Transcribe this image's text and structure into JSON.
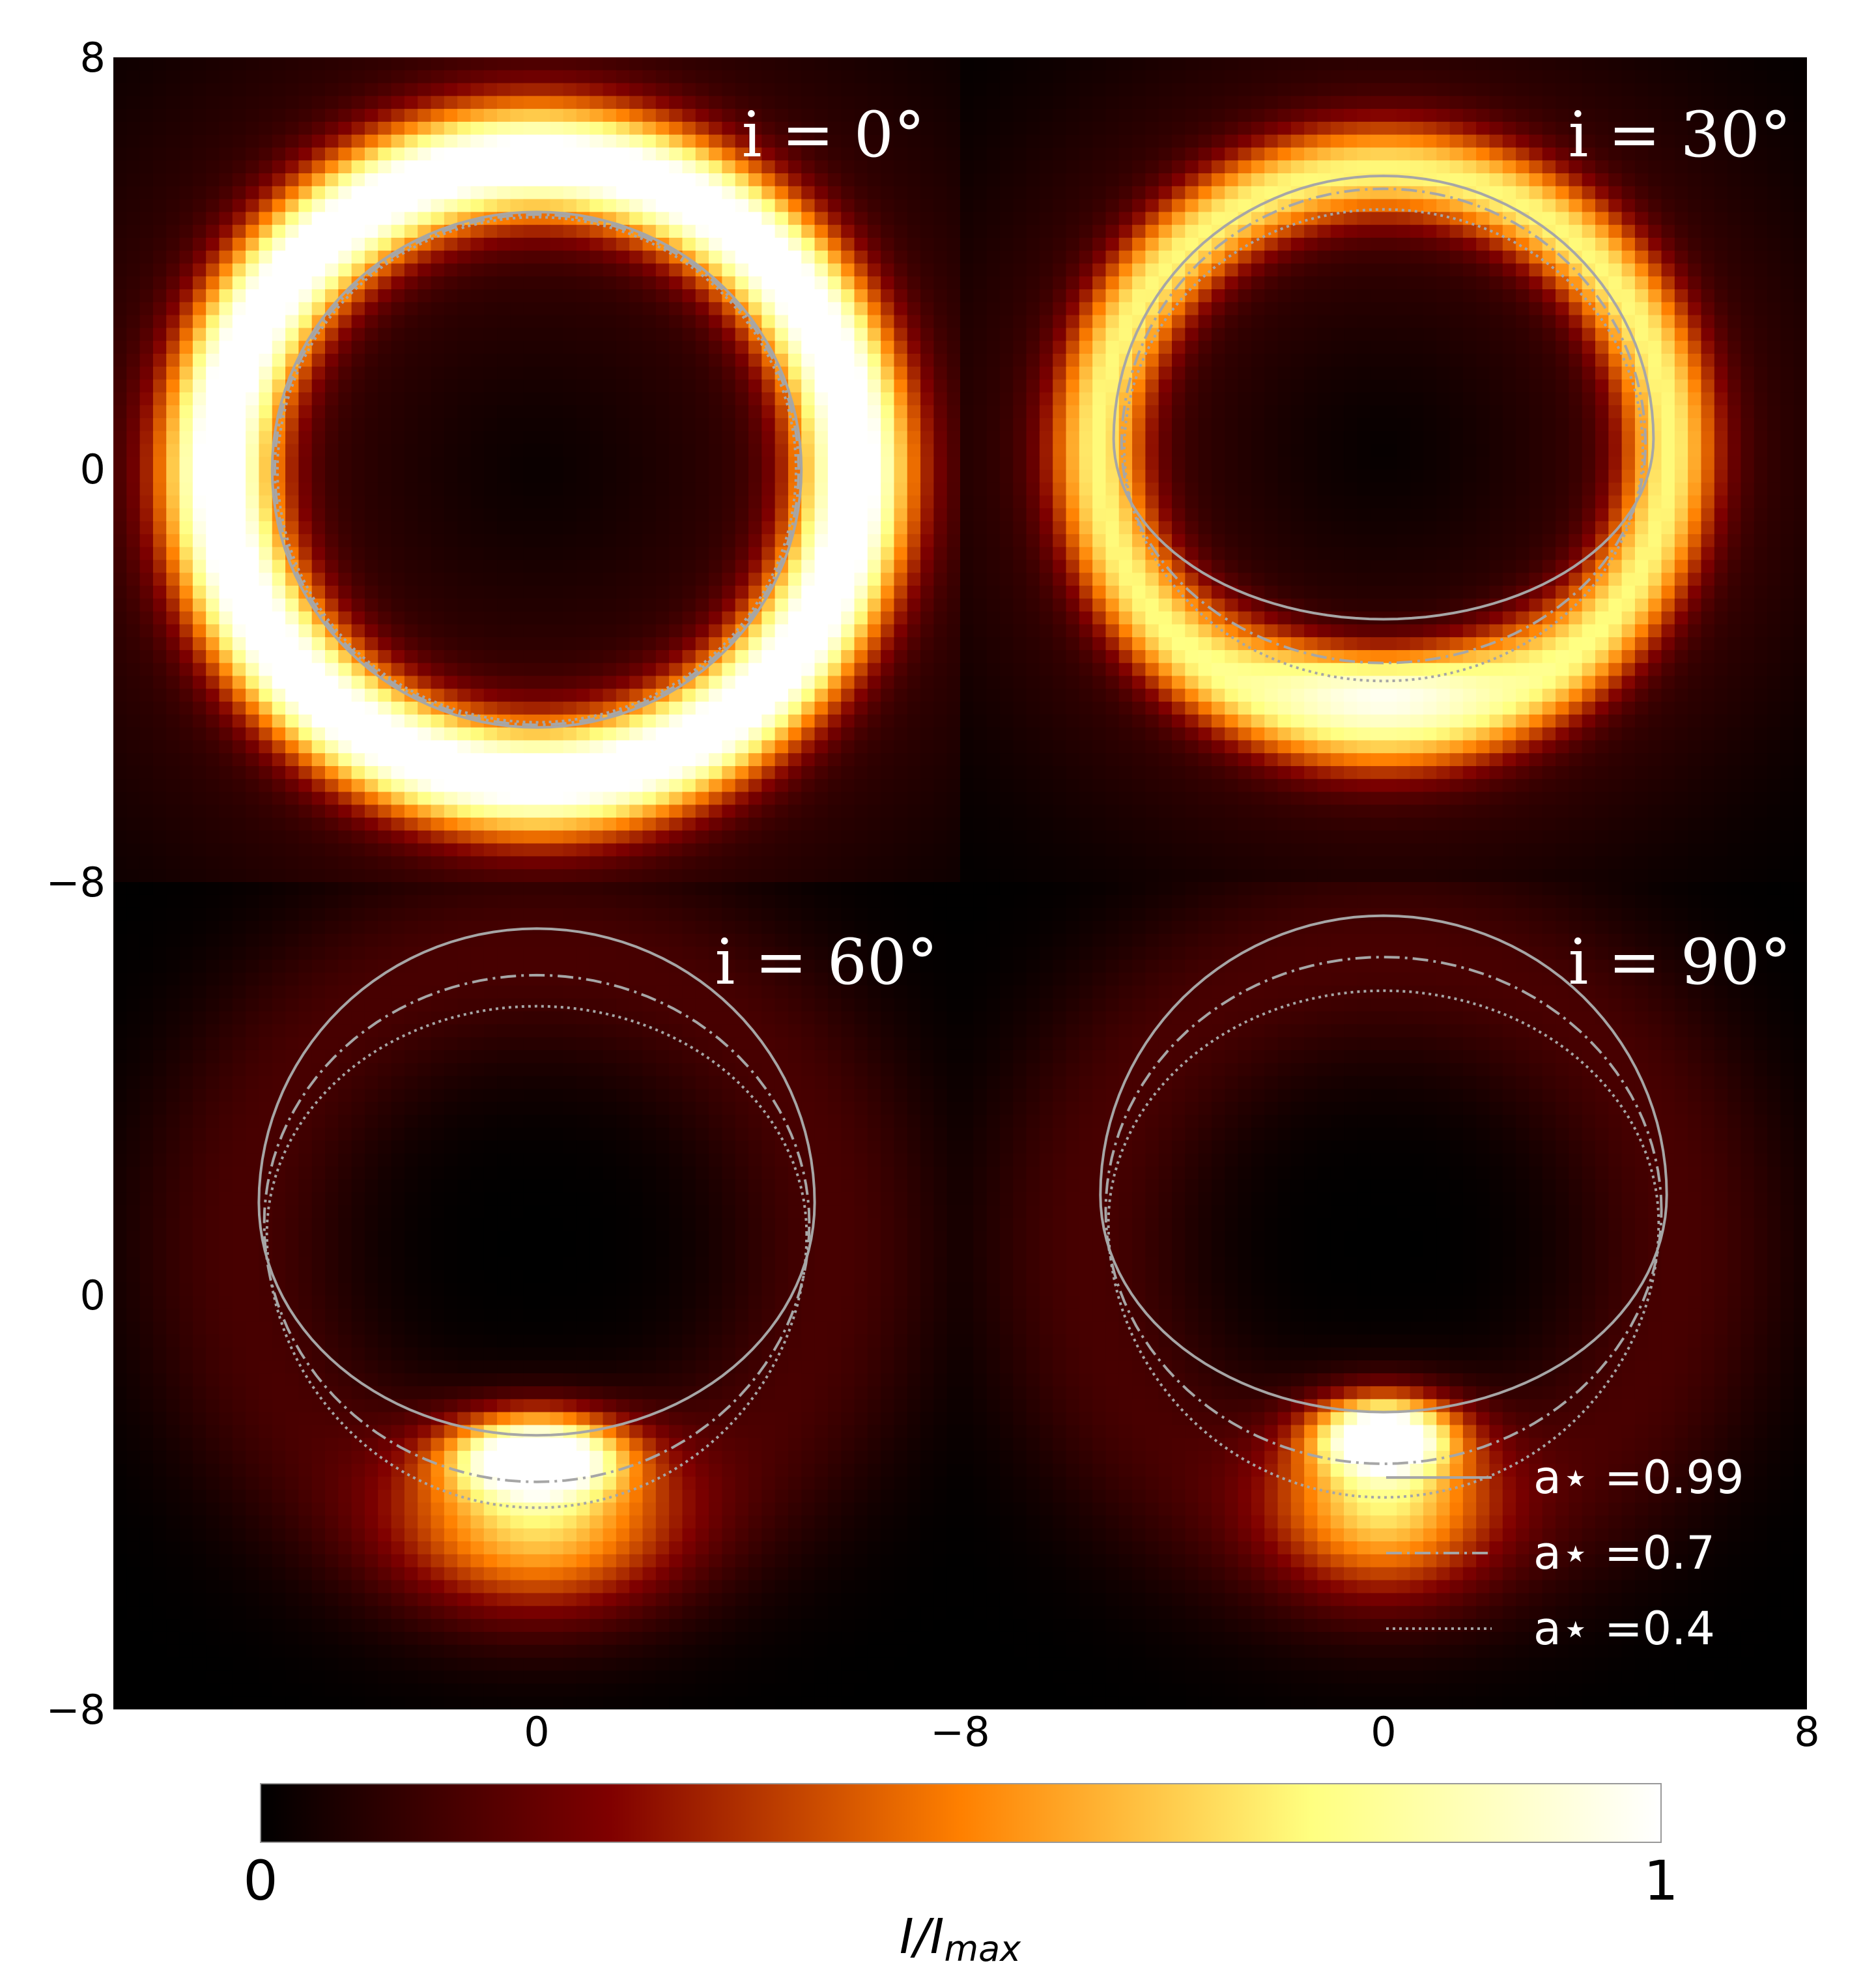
{
  "chart_data": {
    "type": "heatmap",
    "x_range": [
      -8,
      8
    ],
    "y_range": [
      -8,
      8
    ],
    "tick_labels": {
      "y_top_panels": [
        "8",
        "0",
        "−8"
      ],
      "y_bottom_panels": [
        "0",
        "−8"
      ],
      "x_left_panels": [
        "0",
        "−8"
      ],
      "x_right_panels": [
        "0",
        "8"
      ]
    },
    "panels": [
      {
        "label": "i = 0°",
        "inclination_deg": 0,
        "curves": {
          "0.99": {
            "cx": 0.0,
            "cy": 0.0,
            "r_top": 5.0,
            "r_bot": 5.0,
            "r_x": 5.0
          },
          "0.7": {
            "cx": 0.0,
            "cy": 0.0,
            "r_top": 4.95,
            "r_bot": 4.95,
            "r_x": 4.95
          },
          "0.4": {
            "cx": 0.0,
            "cy": 0.0,
            "r_top": 4.9,
            "r_bot": 4.9,
            "r_x": 4.9
          }
        },
        "ring": {
          "cy": 0.0,
          "r": 6.0,
          "w": 1.1,
          "peak": 1.0,
          "tilt": 0.0,
          "bright_bottom": 0.0
        }
      },
      {
        "label": "i = 30°",
        "inclination_deg": 30,
        "curves": {
          "0.99": {
            "cx": 0.0,
            "cy": 0.6,
            "r_top": 5.1,
            "r_bot": 3.5,
            "r_x": 5.1
          },
          "0.7": {
            "cx": 0.0,
            "cy": 0.5,
            "r_top": 4.95,
            "r_bot": 4.25,
            "r_x": 4.95
          },
          "0.4": {
            "cx": 0.0,
            "cy": 0.4,
            "r_top": 4.65,
            "r_bot": 4.5,
            "r_x": 4.9
          }
        },
        "ring": {
          "cy": 0.4,
          "r": 5.4,
          "w": 0.9,
          "peak": 0.62,
          "tilt": 0.0,
          "bright_bottom": 0.55
        }
      },
      {
        "label": "i = 60°",
        "inclination_deg": 60,
        "curves": {
          "0.99": {
            "cx": 0.0,
            "cy": 1.8,
            "r_top": 5.3,
            "r_bot": 4.5,
            "r_x": 5.25
          },
          "0.7": {
            "cx": 0.0,
            "cy": 1.4,
            "r_top": 4.8,
            "r_bot": 5.0,
            "r_x": 5.15
          },
          "0.4": {
            "cx": 0.0,
            "cy": 1.2,
            "r_top": 4.4,
            "r_bot": 5.3,
            "r_x": 5.1
          }
        },
        "blob": {
          "cx": 0.0,
          "cy": -3.1,
          "sx": 1.5,
          "sy": 0.75,
          "peak": 1.0,
          "tail": 0.55
        }
      },
      {
        "label": "i = 90°",
        "inclination_deg": 90,
        "curves": {
          "0.99": {
            "cx": 0.0,
            "cy": 1.95,
            "r_top": 5.4,
            "r_bot": 4.2,
            "r_x": 5.35
          },
          "0.7": {
            "cx": 0.0,
            "cy": 1.65,
            "r_top": 4.9,
            "r_bot": 4.9,
            "r_x": 5.25
          },
          "0.4": {
            "cx": 0.0,
            "cy": 1.4,
            "r_top": 4.5,
            "r_bot": 5.3,
            "r_x": 5.2
          }
        },
        "blob": {
          "cx": 0.0,
          "cy": -2.7,
          "sx": 1.2,
          "sy": 0.7,
          "peak": 0.95,
          "tail": 0.6
        }
      }
    ],
    "legend": {
      "entries": [
        {
          "label": "a⋆ =0.99",
          "style": "solid"
        },
        {
          "label": "a⋆ =0.7",
          "style": "dashdot"
        },
        {
          "label": "a⋆ =0.4",
          "style": "dotted"
        }
      ],
      "placement": "lower-right"
    },
    "colorbar": {
      "colormap": "afmhot",
      "min_label": "0",
      "max_label": "1",
      "label": "I/I",
      "label_sub": "max"
    },
    "curve_color": "#a6a6a6",
    "ring_color_hint": "#fff4c0"
  }
}
